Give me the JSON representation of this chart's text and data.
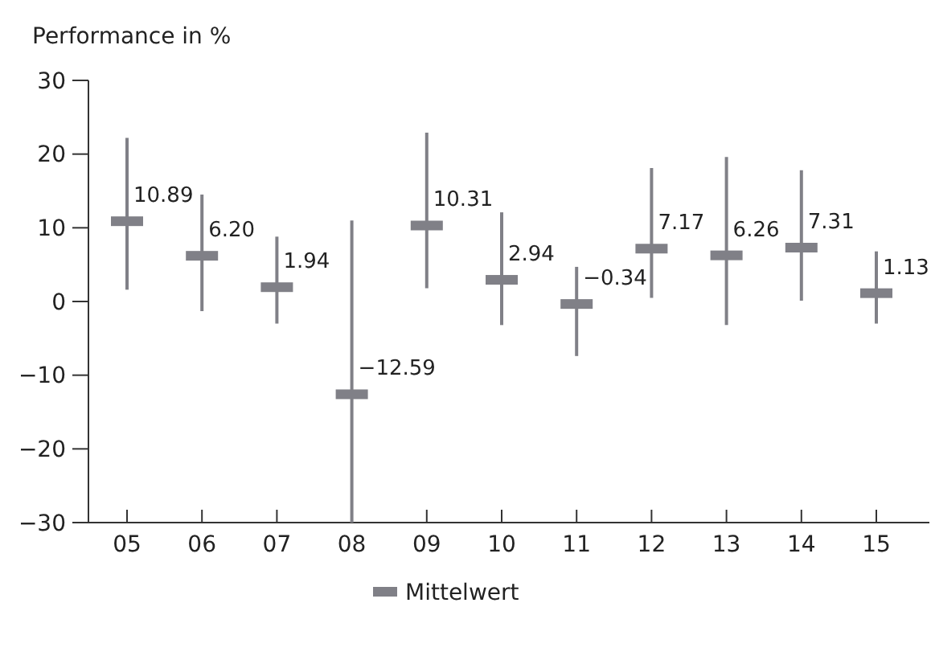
{
  "chart_data": {
    "type": "scatter",
    "ylabel": "Performance in %",
    "categories": [
      "05",
      "06",
      "07",
      "08",
      "09",
      "10",
      "11",
      "12",
      "13",
      "14",
      "15"
    ],
    "series": [
      {
        "name": "Mittelwert",
        "color": "#808087",
        "values": [
          10.89,
          6.2,
          1.94,
          -12.59,
          10.31,
          2.94,
          -0.34,
          7.17,
          6.26,
          7.31,
          1.13
        ],
        "errors": [
          [
            1.6,
            22.2
          ],
          [
            -1.3,
            14.5
          ],
          [
            -3.0,
            8.8
          ],
          [
            -30,
            11.0
          ],
          [
            1.8,
            22.9
          ],
          [
            -3.2,
            12.1
          ],
          [
            -7.4,
            4.7
          ],
          [
            0.5,
            18.1
          ],
          [
            -3.2,
            19.6
          ],
          [
            0.1,
            17.8
          ],
          [
            -3.0,
            6.8
          ]
        ],
        "value_labels": [
          "10.89",
          "6.20",
          "1.94",
          "−12.59",
          "10.31",
          "2.94",
          "−0.34",
          "7.17",
          "6.26",
          "7.31",
          "1.13"
        ]
      }
    ],
    "ylim": [
      -30,
      30
    ],
    "yticks": [
      {
        "value": -30,
        "label": "−30"
      },
      {
        "value": -20,
        "label": "−20"
      },
      {
        "value": -10,
        "label": "−10"
      },
      0,
      10,
      20,
      30
    ],
    "marker": "square",
    "legend": "bottom",
    "grid": false
  }
}
